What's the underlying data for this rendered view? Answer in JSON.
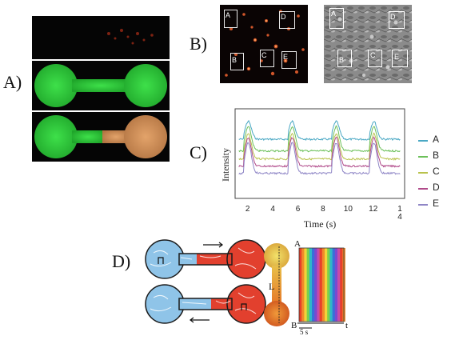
{
  "panel_labels": {
    "a": "A)",
    "b": "B)",
    "c": "C)",
    "d": "D)"
  },
  "panel_b": {
    "regions": [
      "A",
      "B",
      "C",
      "D",
      "E"
    ]
  },
  "chart_data": {
    "type": "line",
    "ylabel": "Intensity",
    "xlabel": "Time (s)",
    "xlim": [
      1,
      14.5
    ],
    "x_ticks": [
      "2",
      "4",
      "6",
      "8",
      "10",
      "12"
    ],
    "x_tick_last": [
      "1",
      "4"
    ],
    "legend_placement": "right",
    "grid": false,
    "series": [
      {
        "name": "A",
        "color": "#4aa8c4",
        "baseline": 0.34,
        "peak": 0.86
      },
      {
        "name": "B",
        "color": "#6cc05a",
        "baseline": 0.47,
        "peak": 0.8
      },
      {
        "name": "C",
        "color": "#b9c24c",
        "baseline": 0.56,
        "peak": 0.72
      },
      {
        "name": "D",
        "color": "#b04a8a",
        "baseline": 0.64,
        "peak": 0.68
      },
      {
        "name": "E",
        "color": "#8f86c6",
        "baseline": 0.72,
        "peak": 0.62
      }
    ],
    "peak_times": [
      2.0,
      5.5,
      9.0,
      12.0
    ]
  },
  "panel_d": {
    "label_a": "A",
    "label_b": "B",
    "label_l": "L",
    "axis_t": "t",
    "scale_label": "5 s"
  }
}
